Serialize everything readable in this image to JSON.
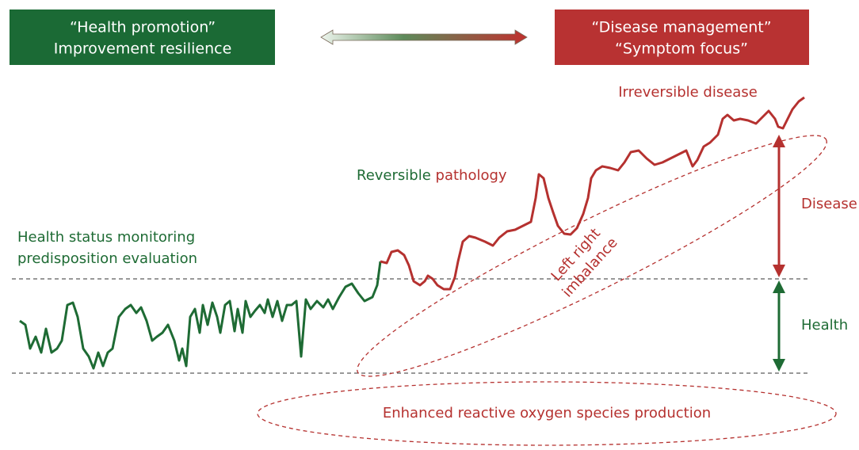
{
  "left_box": {
    "lines": [
      "“Health promotion”",
      "Improvement resilience"
    ]
  },
  "right_box": {
    "lines": [
      "“Disease management”",
      "“Symptom focus”"
    ]
  },
  "labels": {
    "irreversible": "Irreversible disease",
    "reversible": {
      "green": "Reversible",
      "red": "pathology"
    },
    "monitoring": [
      "Health status monitoring",
      "predisposition evaluation"
    ],
    "imbalance": [
      "Left right",
      "imbalance"
    ],
    "disease": "Disease",
    "health": "Health",
    "ros": "Enhanced reactive oxygen species production"
  }
}
